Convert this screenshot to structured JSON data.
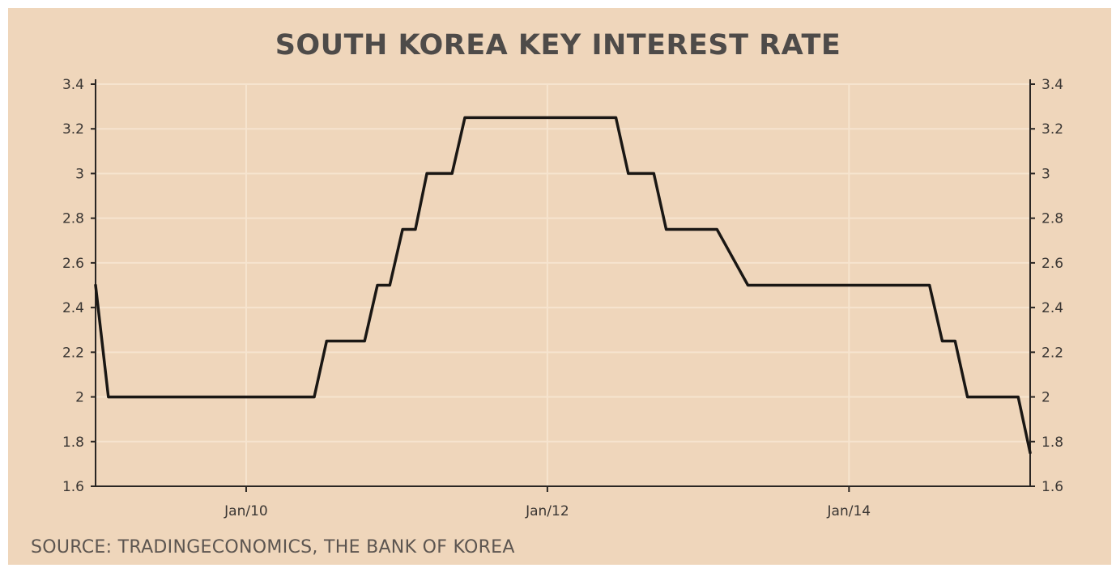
{
  "chart_data": {
    "type": "line",
    "title": "SOUTH KOREA KEY INTEREST RATE",
    "source": "SOURCE: TRADINGECONOMICS, THE BANK OF KOREA",
    "xlabel": "",
    "ylabel": "",
    "x_ticks": [
      {
        "date": "2010-01-01",
        "label": "Jan/10"
      },
      {
        "date": "2012-01-01",
        "label": "Jan/12"
      },
      {
        "date": "2014-01-01",
        "label": "Jan/14"
      }
    ],
    "xlim": [
      "2009-01-01",
      "2015-03-16"
    ],
    "ylim": [
      1.6,
      3.4
    ],
    "y_ticks": [
      {
        "value": 1.6,
        "label": "1.6"
      },
      {
        "value": 1.8,
        "label": "1.8"
      },
      {
        "value": 2.0,
        "label": "2"
      },
      {
        "value": 2.2,
        "label": "2.2"
      },
      {
        "value": 2.4,
        "label": "2.4"
      },
      {
        "value": 2.6,
        "label": "2.6"
      },
      {
        "value": 2.8,
        "label": "2.8"
      },
      {
        "value": 3.0,
        "label": "3"
      },
      {
        "value": 3.2,
        "label": "3.2"
      },
      {
        "value": 3.4,
        "label": "3.4"
      }
    ],
    "grid": true,
    "line_color": "#1a1714",
    "background_color": "#efd6bb",
    "series": [
      {
        "points": [
          {
            "x": "2009-01-01",
            "y": 2.5
          },
          {
            "x": "2009-02-01",
            "y": 2.0
          },
          {
            "x": "2010-06-15",
            "y": 2.0
          },
          {
            "x": "2010-07-15",
            "y": 2.25
          },
          {
            "x": "2010-10-15",
            "y": 2.25
          },
          {
            "x": "2010-11-15",
            "y": 2.5
          },
          {
            "x": "2010-12-15",
            "y": 2.5
          },
          {
            "x": "2011-01-15",
            "y": 2.75
          },
          {
            "x": "2011-02-15",
            "y": 2.75
          },
          {
            "x": "2011-03-15",
            "y": 3.0
          },
          {
            "x": "2011-05-15",
            "y": 3.0
          },
          {
            "x": "2011-06-15",
            "y": 3.25
          },
          {
            "x": "2012-06-15",
            "y": 3.25
          },
          {
            "x": "2012-07-15",
            "y": 3.0
          },
          {
            "x": "2012-09-15",
            "y": 3.0
          },
          {
            "x": "2012-10-15",
            "y": 2.75
          },
          {
            "x": "2013-02-15",
            "y": 2.75
          },
          {
            "x": "2013-05-01",
            "y": 2.5
          },
          {
            "x": "2014-07-15",
            "y": 2.5
          },
          {
            "x": "2014-08-15",
            "y": 2.25
          },
          {
            "x": "2014-09-15",
            "y": 2.25
          },
          {
            "x": "2014-10-15",
            "y": 2.0
          },
          {
            "x": "2015-02-15",
            "y": 2.0
          },
          {
            "x": "2015-03-16",
            "y": 1.75
          }
        ]
      }
    ]
  }
}
